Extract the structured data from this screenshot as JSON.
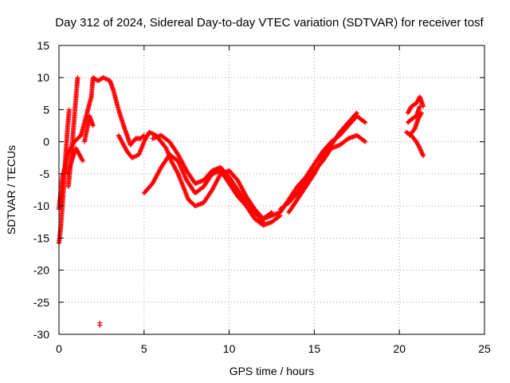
{
  "chart_data": {
    "type": "scatter",
    "title": "Day 312 of 2024, Sidereal Day-to-day VTEC variation (SDTVAR) for receiver tosf",
    "xlabel": "GPS time / hours",
    "ylabel": "SDTVAR / TECUs",
    "xlim": [
      0,
      25
    ],
    "ylim": [
      -30,
      15
    ],
    "x_ticks": [
      0,
      5,
      10,
      15,
      20,
      25
    ],
    "x_tick_labels": [
      "0",
      "5",
      "10",
      "15",
      "20",
      "25"
    ],
    "y_ticks": [
      -30,
      -25,
      -20,
      -15,
      -10,
      -5,
      0,
      5,
      10,
      15
    ],
    "y_tick_labels": [
      "-30",
      "-25",
      "-20",
      "-15",
      "-10",
      "-5",
      "0",
      "5",
      "10",
      "15"
    ],
    "grid": true,
    "marker": "+",
    "color": "#ff0000",
    "series": [
      {
        "name": "SDTVAR",
        "tracks": [
          [
            [
              0.0,
              -15.8
            ],
            [
              0.1,
              -13.5
            ],
            [
              0.2,
              -10.0
            ],
            [
              0.3,
              -6.0
            ],
            [
              0.4,
              -2.0
            ],
            [
              0.5,
              2.0
            ],
            [
              0.6,
              5.0
            ]
          ],
          [
            [
              0.55,
              -7.0
            ],
            [
              0.7,
              -3.0
            ],
            [
              0.85,
              2.0
            ],
            [
              1.0,
              7.0
            ],
            [
              1.1,
              10.0
            ]
          ],
          [
            [
              0.0,
              -10.5
            ],
            [
              0.1,
              -8.0
            ],
            [
              0.2,
              -5.5
            ],
            [
              0.35,
              -4.0
            ],
            [
              0.5,
              -2.0
            ],
            [
              0.7,
              -1.0
            ],
            [
              0.9,
              0.0
            ],
            [
              1.1,
              0.5
            ],
            [
              1.3,
              1.0
            ],
            [
              1.5,
              3.0
            ],
            [
              1.7,
              5.0
            ],
            [
              1.9,
              7.0
            ],
            [
              2.0,
              10.0
            ],
            [
              2.3,
              9.5
            ],
            [
              2.6,
              10.0
            ],
            [
              3.0,
              9.5
            ],
            [
              3.2,
              8.0
            ],
            [
              3.5,
              5.0
            ],
            [
              3.8,
              2.5
            ],
            [
              4.0,
              1.0
            ],
            [
              4.2,
              -0.5
            ],
            [
              4.5,
              0.5
            ],
            [
              4.8,
              0.5
            ],
            [
              5.0,
              1.0
            ]
          ],
          [
            [
              0.5,
              -5.0
            ],
            [
              1.0,
              -1.0
            ],
            [
              1.4,
              -3.0
            ]
          ],
          [
            [
              1.5,
              0.0
            ],
            [
              1.8,
              4.0
            ],
            [
              2.0,
              2.5
            ]
          ],
          [
            [
              3.5,
              1.0
            ],
            [
              3.8,
              -0.5
            ],
            [
              4.0,
              -1.5
            ],
            [
              4.3,
              -2.5
            ],
            [
              4.7,
              -2.0
            ],
            [
              5.0,
              0.0
            ],
            [
              5.3,
              1.5
            ],
            [
              5.7,
              1.0
            ],
            [
              6.0,
              0.0
            ],
            [
              6.3,
              -1.0
            ],
            [
              6.6,
              -3.0
            ],
            [
              7.0,
              -5.0
            ],
            [
              7.3,
              -7.0
            ],
            [
              7.6,
              -9.0
            ],
            [
              8.0,
              -10.0
            ],
            [
              8.5,
              -9.5
            ],
            [
              9.0,
              -7.5
            ],
            [
              9.5,
              -5.0
            ],
            [
              10.0,
              -4.5
            ],
            [
              10.5,
              -6.0
            ],
            [
              11.0,
              -8.5
            ],
            [
              11.5,
              -10.5
            ],
            [
              12.0,
              -12.0
            ],
            [
              12.5,
              -11.0
            ]
          ],
          [
            [
              5.0,
              -8.0
            ],
            [
              5.5,
              -6.5
            ],
            [
              6.0,
              -4.0
            ],
            [
              6.5,
              -2.0
            ],
            [
              7.0,
              -3.0
            ],
            [
              7.5,
              -6.0
            ],
            [
              8.0,
              -8.0
            ],
            [
              8.5,
              -7.0
            ],
            [
              9.0,
              -5.0
            ],
            [
              9.5,
              -4.5
            ],
            [
              10.0,
              -6.5
            ],
            [
              10.5,
              -8.5
            ],
            [
              11.0,
              -10.0
            ],
            [
              11.5,
              -12.0
            ],
            [
              12.0,
              -13.0
            ],
            [
              12.5,
              -12.5
            ],
            [
              13.0,
              -11.5
            ]
          ],
          [
            [
              5.5,
              0.5
            ],
            [
              6.0,
              1.0
            ],
            [
              6.5,
              0.0
            ],
            [
              7.0,
              -2.0
            ],
            [
              7.5,
              -4.5
            ],
            [
              8.0,
              -6.5
            ],
            [
              8.5,
              -6.0
            ],
            [
              9.0,
              -4.5
            ],
            [
              9.5,
              -4.0
            ],
            [
              10.0,
              -5.5
            ],
            [
              10.5,
              -7.5
            ],
            [
              11.0,
              -9.5
            ],
            [
              11.5,
              -11.0
            ],
            [
              12.0,
              -12.5
            ]
          ],
          [
            [
              12.0,
              -12.0
            ],
            [
              12.5,
              -11.5
            ],
            [
              13.0,
              -11.0
            ],
            [
              13.5,
              -9.0
            ],
            [
              14.0,
              -7.0
            ],
            [
              14.5,
              -5.5
            ],
            [
              15.0,
              -3.5
            ],
            [
              15.5,
              -1.5
            ],
            [
              16.0,
              0.0
            ],
            [
              16.5,
              1.0
            ],
            [
              17.0,
              2.5
            ],
            [
              17.5,
              4.0
            ],
            [
              18.0,
              3.0
            ]
          ],
          [
            [
              13.0,
              -10.5
            ],
            [
              13.5,
              -9.5
            ],
            [
              14.0,
              -8.0
            ],
            [
              14.5,
              -6.0
            ],
            [
              15.0,
              -4.5
            ],
            [
              15.5,
              -3.0
            ],
            [
              16.0,
              -1.0
            ],
            [
              16.5,
              -0.5
            ],
            [
              17.0,
              0.5
            ],
            [
              17.5,
              1.0
            ],
            [
              18.0,
              0.0
            ]
          ],
          [
            [
              13.5,
              -11.0
            ],
            [
              14.0,
              -9.0
            ],
            [
              14.5,
              -7.0
            ],
            [
              15.0,
              -5.0
            ],
            [
              15.5,
              -2.5
            ],
            [
              16.0,
              -0.5
            ],
            [
              16.5,
              1.5
            ],
            [
              17.0,
              3.0
            ],
            [
              17.5,
              4.5
            ]
          ],
          [
            [
              20.5,
              4.5
            ],
            [
              20.7,
              5.5
            ],
            [
              21.0,
              6.0
            ],
            [
              21.2,
              7.0
            ],
            [
              21.4,
              5.5
            ]
          ],
          [
            [
              20.5,
              3.0
            ],
            [
              20.7,
              3.5
            ],
            [
              21.0,
              4.0
            ],
            [
              21.2,
              5.5
            ]
          ],
          [
            [
              20.4,
              1.5
            ],
            [
              20.7,
              1.0
            ],
            [
              21.0,
              0.0
            ],
            [
              21.2,
              -1.0
            ],
            [
              21.4,
              -2.2
            ]
          ],
          [
            [
              20.6,
              1.0
            ],
            [
              20.9,
              2.0
            ],
            [
              21.1,
              3.5
            ],
            [
              21.3,
              4.5
            ]
          ]
        ],
        "isolated_points": [
          [
            2.4,
            -28.6
          ]
        ]
      }
    ]
  }
}
